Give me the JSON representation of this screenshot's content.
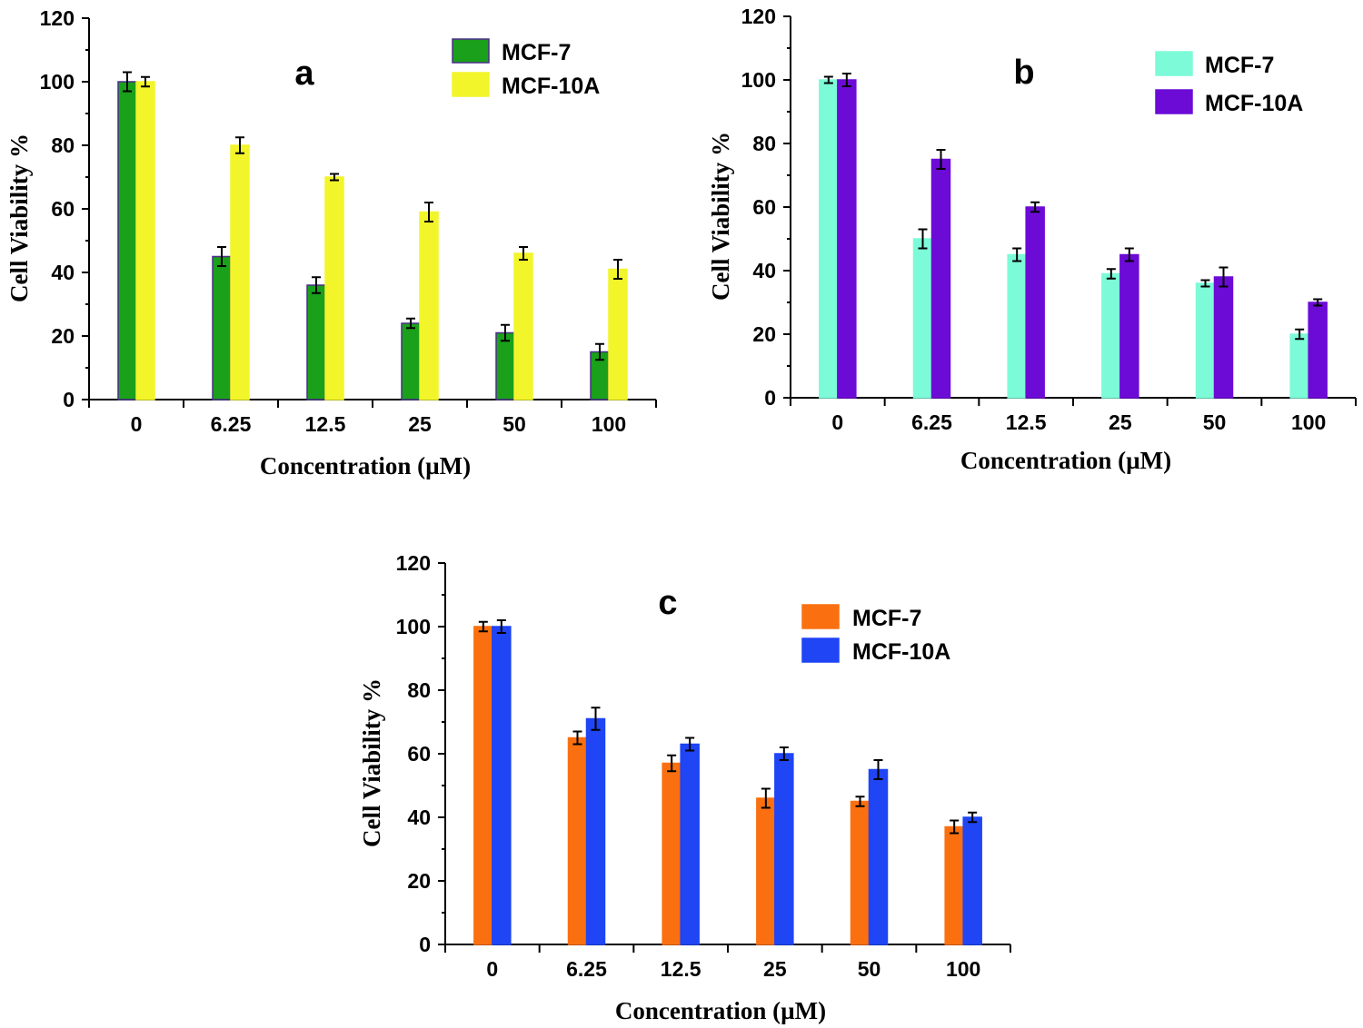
{
  "chart_data": [
    {
      "type": "bar",
      "title": "a",
      "xlabel": "Concentration (µM)",
      "ylabel": "Cell Viability %",
      "ylim": [
        0,
        120
      ],
      "yticks": [
        "0",
        "20",
        "40",
        "60",
        "80",
        "100",
        "120"
      ],
      "categories": [
        "0",
        "6.25",
        "12.5",
        "25",
        "50",
        "100"
      ],
      "legend_position": "top-right",
      "series": [
        {
          "name": "MCF-7",
          "color": "#1aa01a",
          "edge": "#4b2e8a",
          "values": [
            100,
            45,
            36,
            24,
            21,
            15
          ],
          "errors": [
            3,
            3,
            2.5,
            1.5,
            2.5,
            2.5
          ]
        },
        {
          "name": "MCF-10A",
          "color": "#f2f52a",
          "edge": "#f2f52a",
          "values": [
            100,
            80,
            70,
            59,
            46,
            41
          ],
          "errors": [
            1.5,
            2.5,
            1,
            3,
            2,
            3
          ]
        }
      ]
    },
    {
      "type": "bar",
      "title": "b",
      "xlabel": "Concentration (µM)",
      "ylabel": "Cell Viability %",
      "ylim": [
        0,
        120
      ],
      "yticks": [
        "0",
        "20",
        "40",
        "60",
        "80",
        "100",
        "120"
      ],
      "categories": [
        "0",
        "6.25",
        "12.5",
        "25",
        "50",
        "100"
      ],
      "legend_position": "top-right",
      "series": [
        {
          "name": "MCF-7",
          "color": "#7dfbd8",
          "edge": "#7dfbd8",
          "values": [
            100,
            50,
            45,
            39,
            36,
            20
          ],
          "errors": [
            1,
            3,
            2,
            1.5,
            1,
            1.5
          ]
        },
        {
          "name": "MCF-10A",
          "color": "#6c0bd6",
          "edge": "#6c0bd6",
          "values": [
            100,
            75,
            60,
            45,
            38,
            30
          ],
          "errors": [
            2,
            3,
            1.5,
            2,
            3,
            1
          ]
        }
      ]
    },
    {
      "type": "bar",
      "title": "c",
      "xlabel": "Concentration (µM)",
      "ylabel": "Cell Viability %",
      "ylim": [
        0,
        120
      ],
      "yticks": [
        "0",
        "20",
        "40",
        "60",
        "80",
        "100",
        "120"
      ],
      "categories": [
        "0",
        "6.25",
        "12.5",
        "25",
        "50",
        "100"
      ],
      "legend_position": "top-right",
      "series": [
        {
          "name": "MCF-7",
          "color": "#fa7010",
          "edge": "#fa7010",
          "values": [
            100,
            65,
            57,
            46,
            45,
            37
          ],
          "errors": [
            1.5,
            2,
            2.5,
            3,
            1.5,
            2
          ]
        },
        {
          "name": "MCF-10A",
          "color": "#1f45f5",
          "edge": "#1f45f5",
          "values": [
            100,
            71,
            63,
            60,
            55,
            40
          ],
          "errors": [
            2,
            3.5,
            2,
            2,
            3,
            1.5
          ]
        }
      ]
    }
  ]
}
